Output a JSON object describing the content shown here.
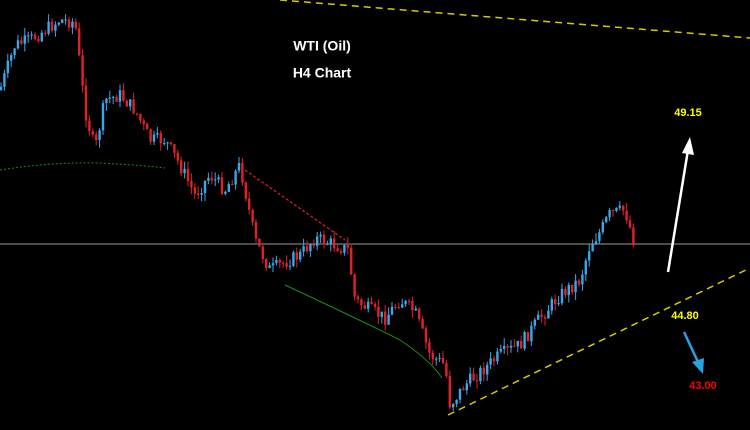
{
  "header": {
    "title": "WTI (Oil)",
    "subtitle": "H4 Chart"
  },
  "annotations": [
    {
      "label": "49.15",
      "color": "#ffff00"
    },
    {
      "label": "44.80",
      "color": "#ffff00"
    },
    {
      "label": "43.00",
      "color": "#ff0000"
    }
  ]
}
